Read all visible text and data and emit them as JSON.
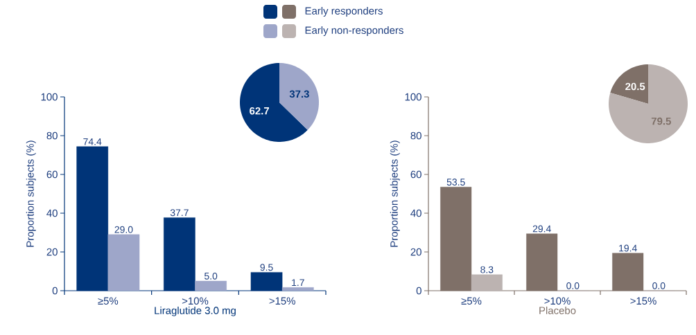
{
  "chart_data": [
    {
      "type": "bar",
      "categories": [
        "≥5%",
        ">10%",
        ">15%"
      ],
      "xlabel": "Liraglutide 3.0 mg",
      "ylabel": "Proportion subjects (%)",
      "ylim": [
        0,
        100
      ],
      "yticks": [
        0,
        20,
        40,
        60,
        80,
        100
      ],
      "legend": "top",
      "series": [
        {
          "name": "Early responders",
          "color": "#003478",
          "values": [
            74.4,
            37.7,
            9.5
          ],
          "value_labels": [
            "74.4",
            "37.7",
            "9.5"
          ]
        },
        {
          "name": "Early non-responders",
          "color": "#9ea6c9",
          "values": [
            29.0,
            5.0,
            1.7
          ],
          "value_labels": [
            "29.0",
            "5.0",
            "1.7"
          ]
        }
      ]
    },
    {
      "type": "pie",
      "categories": [
        null,
        null
      ],
      "values": [
        62.7,
        37.3
      ],
      "colors": [
        "#003478",
        "#9ea6c9"
      ],
      "value_labels": [
        "62.7",
        "37.3"
      ]
    },
    {
      "type": "bar",
      "categories": [
        "≥5%",
        ">10%",
        ">15%"
      ],
      "xlabel": "Placebo",
      "ylabel": "Proportion subjects (%)",
      "ylim": [
        0,
        100
      ],
      "yticks": [
        0,
        20,
        40,
        60,
        80,
        100
      ],
      "series": [
        {
          "color": "#7f7068",
          "values": [
            53.5,
            29.4,
            19.4
          ],
          "value_labels": [
            "53.5",
            "29.4",
            "19.4"
          ]
        },
        {
          "color": "#bcb3b1",
          "values": [
            8.3,
            0.0,
            0.0
          ],
          "value_labels": [
            "8.3",
            "0.0",
            "0.0"
          ]
        }
      ]
    },
    {
      "type": "pie",
      "categories": [
        null,
        null
      ],
      "values": [
        20.5,
        79.5
      ],
      "colors": [
        "#7f7068",
        "#bcb3b1"
      ],
      "value_labels": [
        "20.5",
        "79.5"
      ]
    }
  ]
}
